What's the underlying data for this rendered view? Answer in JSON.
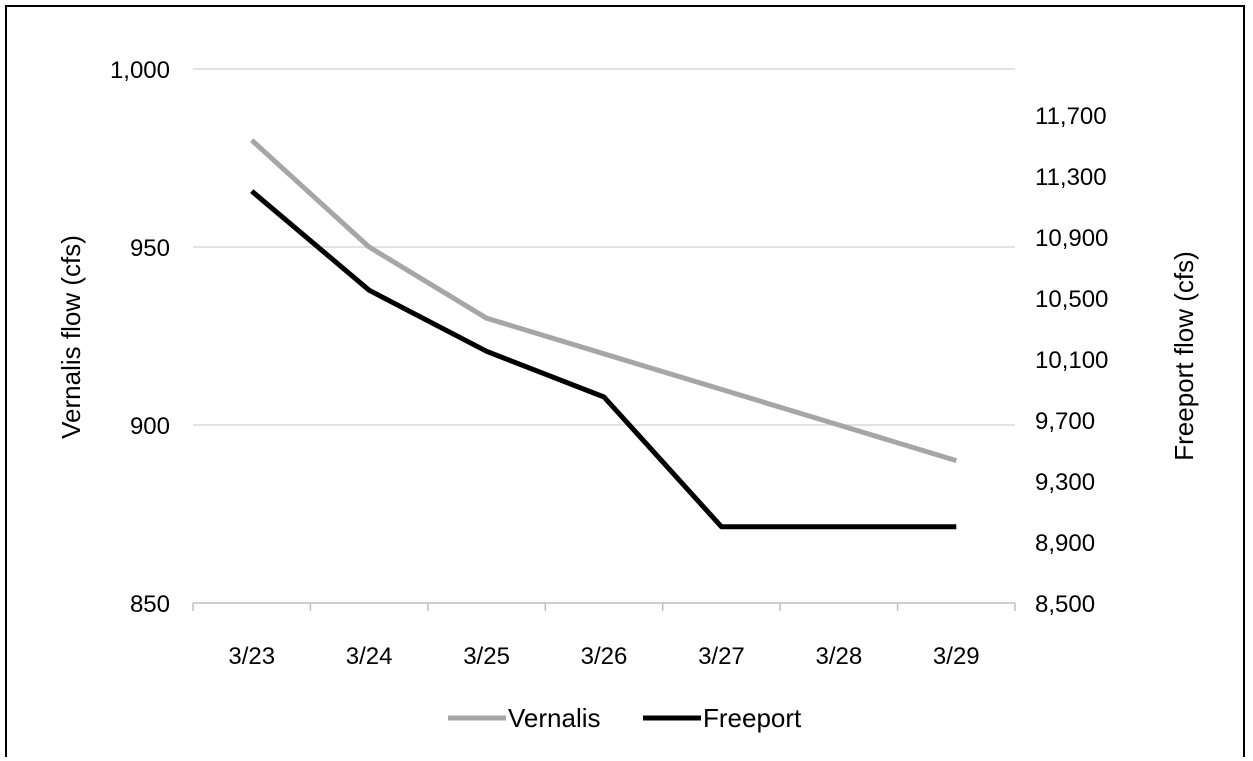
{
  "chart_data": {
    "type": "line",
    "title": "",
    "categories": [
      "3/23",
      "3/24",
      "3/25",
      "3/26",
      "3/27",
      "3/28",
      "3/29"
    ],
    "y_left": {
      "label": "Vernalis flow (cfs)",
      "range": [
        850,
        1000
      ],
      "ticks": [
        850,
        900,
        950,
        1000
      ],
      "tick_labels": [
        "850",
        "900",
        "950",
        "1,000"
      ]
    },
    "y_right": {
      "label": "Freeport flow (cfs)",
      "range": [
        8500,
        12000
      ],
      "ticks": [
        8500,
        8900,
        9300,
        9700,
        10100,
        10500,
        10900,
        11300,
        11700
      ],
      "tick_labels": [
        "8,500",
        "8,900",
        "9,300",
        "9,700",
        "10,100",
        "10,500",
        "10,900",
        "11,300",
        "11,700"
      ]
    },
    "series": [
      {
        "name": "Vernalis",
        "axis": "left",
        "color": "#a6a6a6",
        "values": [
          980,
          950,
          930,
          920,
          910,
          900,
          890
        ]
      },
      {
        "name": "Freeport",
        "axis": "right",
        "color": "#000000",
        "values": [
          11200,
          10550,
          10150,
          9850,
          9000,
          9000,
          9000
        ]
      }
    ],
    "grid": true,
    "legend": "bottom"
  }
}
